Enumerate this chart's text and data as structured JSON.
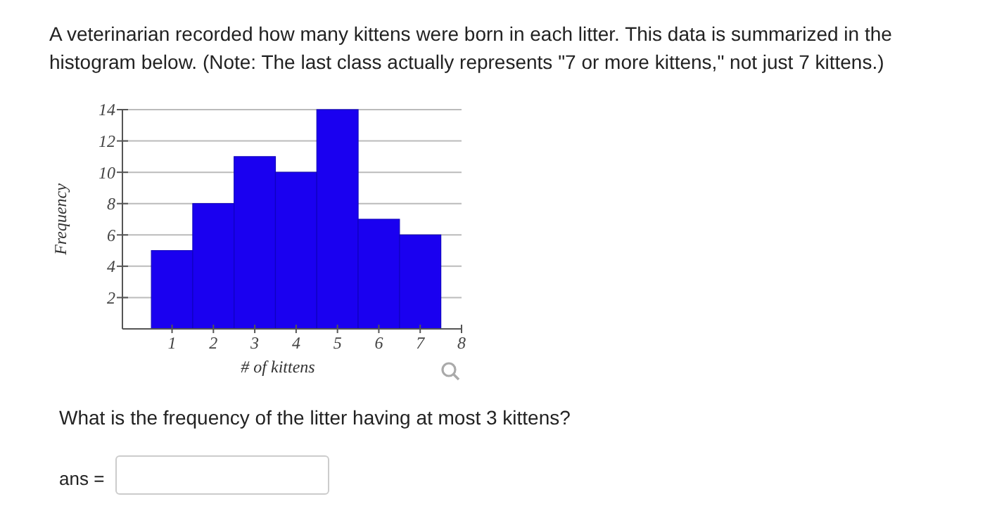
{
  "chart_data": {
    "type": "histogram",
    "title": "A veterinarian recorded how many kittens were born in each litter. This data is summarized in the histogram below. (Note: The last class actually represents \"7 or more kittens,\" not just 7 kittens.)",
    "xlabel": "# of kittens",
    "ylabel": "Frequency",
    "bins": [
      0.5,
      1.5,
      2.5,
      3.5,
      4.5,
      5.5,
      6.5,
      7.5
    ],
    "values": [
      5,
      8,
      11,
      10,
      14,
      7,
      6
    ],
    "color": "#1a00f0",
    "xlim": [
      -0.2,
      8
    ],
    "xticks": [
      1,
      2,
      3,
      4,
      5,
      6,
      7,
      8
    ],
    "ylim": [
      0,
      14
    ],
    "yticks": [
      2,
      4,
      6,
      8,
      10,
      12,
      14
    ],
    "grid": "y",
    "annotations": [
      "What is the frequency of the litter having at most 3 kittens?",
      "ans ="
    ]
  }
}
